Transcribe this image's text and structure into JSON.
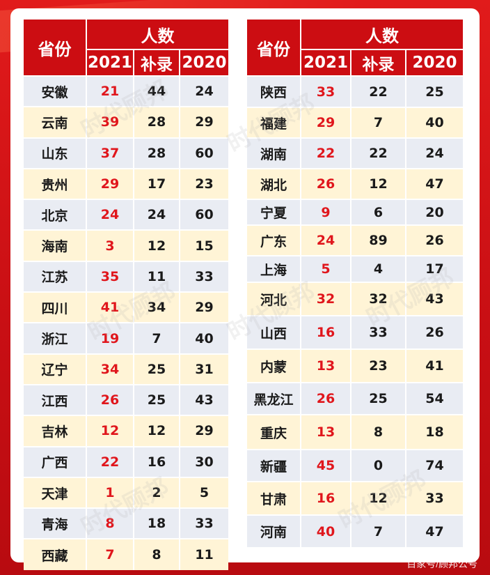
{
  "headers": {
    "province": "省份",
    "count": "人数",
    "y2021": "2021",
    "supplement": "补录",
    "y2020": "2020"
  },
  "left_rows": [
    {
      "p": "安徽",
      "a": "21",
      "b": "44",
      "c": "24"
    },
    {
      "p": "云南",
      "a": "39",
      "b": "28",
      "c": "29"
    },
    {
      "p": "山东",
      "a": "37",
      "b": "28",
      "c": "60"
    },
    {
      "p": "贵州",
      "a": "29",
      "b": "17",
      "c": "23"
    },
    {
      "p": "北京",
      "a": "24",
      "b": "24",
      "c": "60"
    },
    {
      "p": "海南",
      "a": "3",
      "b": "12",
      "c": "15"
    },
    {
      "p": "江苏",
      "a": "35",
      "b": "11",
      "c": "33"
    },
    {
      "p": "四川",
      "a": "41",
      "b": "34",
      "c": "29"
    },
    {
      "p": "浙江",
      "a": "19",
      "b": "7",
      "c": "40"
    },
    {
      "p": "辽宁",
      "a": "34",
      "b": "25",
      "c": "31"
    },
    {
      "p": "江西",
      "a": "26",
      "b": "25",
      "c": "43"
    },
    {
      "p": "吉林",
      "a": "12",
      "b": "12",
      "c": "29"
    },
    {
      "p": "广西",
      "a": "22",
      "b": "16",
      "c": "30"
    },
    {
      "p": "天津",
      "a": "1",
      "b": "2",
      "c": "5"
    },
    {
      "p": "青海",
      "a": "8",
      "b": "18",
      "c": "33"
    },
    {
      "p": "西藏",
      "a": "7",
      "b": "8",
      "c": "11"
    }
  ],
  "right_rows": [
    {
      "p": "陕西",
      "a": "33",
      "b": "22",
      "c": "25"
    },
    {
      "p": "福建",
      "a": "29",
      "b": "7",
      "c": "40"
    },
    {
      "p": "湖南",
      "a": "22",
      "b": "22",
      "c": "24"
    },
    {
      "p": "湖北",
      "a": "26",
      "b": "12",
      "c": "47"
    },
    {
      "p": "宁夏",
      "a": "9",
      "b": "6",
      "c": "20"
    },
    {
      "p": "广东",
      "a": "24",
      "b": "89",
      "c": "26"
    },
    {
      "p": "上海",
      "a": "5",
      "b": "4",
      "c": "17"
    },
    {
      "p": "河北",
      "a": "32",
      "b": "32",
      "c": "43"
    },
    {
      "p": "山西",
      "a": "16",
      "b": "33",
      "c": "26"
    },
    {
      "p": "内蒙",
      "a": "13",
      "b": "23",
      "c": "41"
    },
    {
      "p": "黑龙江",
      "a": "26",
      "b": "25",
      "c": "54"
    },
    {
      "p": "重庆",
      "a": "13",
      "b": "8",
      "c": "18"
    },
    {
      "p": "新疆",
      "a": "45",
      "b": "0",
      "c": "74"
    },
    {
      "p": "甘肃",
      "a": "16",
      "b": "12",
      "c": "33"
    },
    {
      "p": "河南",
      "a": "40",
      "b": "7",
      "c": "47"
    }
  ],
  "watermark": "时代顾邦",
  "credit": "百家号/顾邦公号",
  "colors": {
    "header_red": "#cc0d12",
    "row_blue": "#e9ecf3",
    "row_yellow": "#fff4d6",
    "value_red": "#e0161c"
  }
}
